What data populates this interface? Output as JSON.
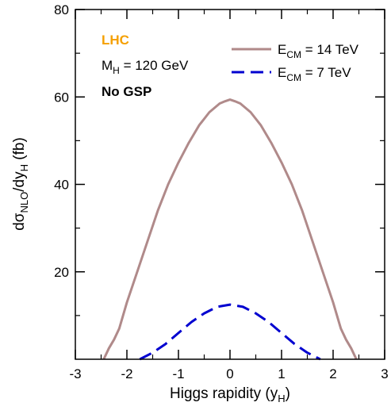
{
  "chart_data": {
    "type": "line",
    "xlabel_main": "Higgs rapidity (y",
    "xlabel_sub": "H",
    "xlabel_end": ")",
    "ylabel_parts": [
      "dσ",
      "NLO",
      "/dy",
      "H",
      " (fb)"
    ],
    "xlim": [
      -3,
      3
    ],
    "ylim": [
      0,
      80
    ],
    "x_ticks": [
      -3,
      -2,
      -1,
      0,
      1,
      2,
      3
    ],
    "y_ticks": [
      20,
      40,
      60,
      80
    ],
    "annotations": {
      "collider": "LHC",
      "collider_color": "#f5a000",
      "mass_main": "M",
      "mass_sub": "H",
      "mass_end": " = 120 GeV",
      "gsp": "No GSP"
    },
    "series": [
      {
        "name_main": "E",
        "name_sub": "CM",
        "name_end": " = 14 TeV",
        "color": "#b08a8a",
        "dash": "solid",
        "x": [
          -2.45,
          -2.35,
          -2.25,
          -2.15,
          -2.0,
          -1.8,
          -1.6,
          -1.4,
          -1.2,
          -1.0,
          -0.8,
          -0.6,
          -0.4,
          -0.2,
          -0.1,
          0.0,
          0.1,
          0.2,
          0.4,
          0.6,
          0.8,
          1.0,
          1.2,
          1.4,
          1.6,
          1.8,
          2.0,
          2.15,
          2.25,
          2.35,
          2.45
        ],
        "y": [
          0,
          2.5,
          4.5,
          7,
          13,
          20,
          27,
          34,
          40,
          45,
          49.5,
          53.5,
          56.5,
          58.5,
          59,
          59.4,
          59,
          58.5,
          56.5,
          53.5,
          49.5,
          45,
          40,
          34,
          27,
          20,
          13,
          7,
          4.5,
          2.5,
          0
        ]
      },
      {
        "name_main": "E",
        "name_sub": "CM",
        "name_end": " = 7 TeV",
        "color": "#0000d0",
        "dash": "dashed",
        "x": [
          -1.75,
          -1.5,
          -1.25,
          -1.0,
          -0.75,
          -0.5,
          -0.25,
          0.0,
          0.25,
          0.5,
          0.75,
          1.0,
          1.25,
          1.5,
          1.75
        ],
        "y": [
          0,
          1.5,
          3.5,
          6,
          8.5,
          10.5,
          12,
          12.5,
          12,
          10.5,
          8.5,
          6,
          3.5,
          1.5,
          0
        ]
      }
    ]
  }
}
